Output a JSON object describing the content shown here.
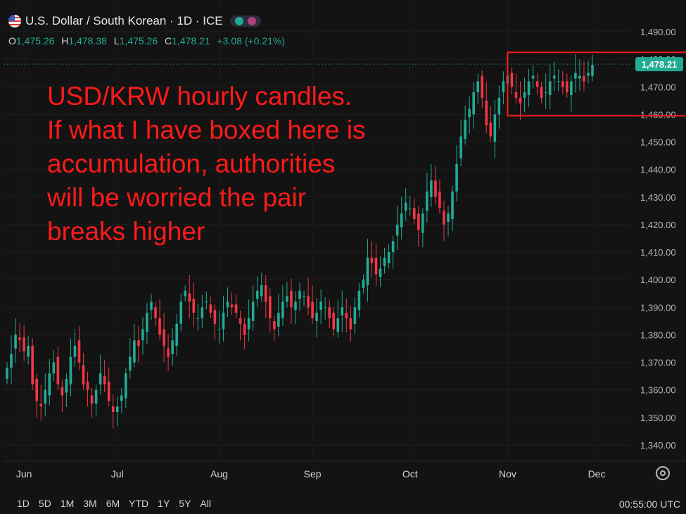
{
  "header": {
    "title": "U.S. Dollar / South Korean · 1D · ICE",
    "ohlc": {
      "o_label": "O",
      "o": "1,475.26",
      "h_label": "H",
      "h": "1,478.38",
      "l_label": "L",
      "l": "1,475.26",
      "c_label": "C",
      "c": "1,478.21",
      "change": "+3.08 (+0.21%)"
    }
  },
  "annotation": {
    "line1": "USD/KRW hourly candles.",
    "line2": "If what I have boxed here is",
    "line3": "accumulation, authorities",
    "line4": "will be worried the pair",
    "line5": "breaks higher"
  },
  "toolbar": {
    "ranges": [
      "1D",
      "5D",
      "1M",
      "3M",
      "6M",
      "YTD",
      "1Y",
      "5Y",
      "All"
    ],
    "time": "00:55:00 UTC"
  },
  "colors": {
    "up": "#22ab94",
    "down": "#f23645",
    "accent_label": "#22ab94",
    "box": "#ff1a1a"
  },
  "chart_data": {
    "type": "candlestick",
    "y_ticks": [
      "1,490.00",
      "1,480.00",
      "1,470.00",
      "1,460.00",
      "1,450.00",
      "1,440.00",
      "1,430.00",
      "1,420.00",
      "1,410.00",
      "1,400.00",
      "1,390.00",
      "1,380.00",
      "1,370.00",
      "1,360.00",
      "1,350.00",
      "1,340.00"
    ],
    "y_tick_values": [
      1490,
      1480,
      1470,
      1460,
      1450,
      1440,
      1430,
      1420,
      1410,
      1400,
      1390,
      1380,
      1370,
      1360,
      1350,
      1340
    ],
    "ylim": [
      1334,
      1495
    ],
    "x_ticks": [
      "Jun",
      "Jul",
      "Aug",
      "Sep",
      "Oct",
      "Nov",
      "Dec"
    ],
    "x_tick_index": [
      4,
      26,
      50,
      72,
      95,
      118,
      139
    ],
    "last_price_label": "1,478.21",
    "last_price": 1478.21,
    "box": {
      "start_index": 120,
      "end_index": 158,
      "low": 1460,
      "high": 1482
    },
    "close": [
      1368,
      1373,
      1380,
      1378,
      1374,
      1376,
      1362,
      1356,
      1354,
      1360,
      1366,
      1370,
      1362,
      1358,
      1364,
      1372,
      1376,
      1370,
      1362,
      1360,
      1355,
      1360,
      1366,
      1362,
      1356,
      1352,
      1354,
      1358,
      1366,
      1372,
      1378,
      1376,
      1382,
      1388,
      1392,
      1386,
      1380,
      1376,
      1372,
      1378,
      1384,
      1392,
      1396,
      1392,
      1388,
      1386,
      1390,
      1392,
      1388,
      1384,
      1382,
      1388,
      1392,
      1390,
      1388,
      1384,
      1380,
      1386,
      1392,
      1396,
      1398,
      1392,
      1386,
      1382,
      1388,
      1392,
      1394,
      1390,
      1392,
      1396,
      1394,
      1390,
      1386,
      1388,
      1392,
      1390,
      1386,
      1382,
      1386,
      1390,
      1386,
      1382,
      1390,
      1396,
      1400,
      1408,
      1406,
      1402,
      1404,
      1408,
      1410,
      1414,
      1420,
      1424,
      1428,
      1426,
      1422,
      1418,
      1424,
      1432,
      1436,
      1430,
      1426,
      1420,
      1424,
      1432,
      1442,
      1452,
      1458,
      1462,
      1468,
      1472,
      1466,
      1456,
      1452,
      1460,
      1466,
      1472,
      1474,
      1470,
      1466,
      1464,
      1468,
      1472,
      1474,
      1470,
      1466,
      1468,
      1472,
      1474,
      1472,
      1470,
      1468,
      1472,
      1475,
      1474,
      1472,
      1475,
      1478
    ]
  }
}
